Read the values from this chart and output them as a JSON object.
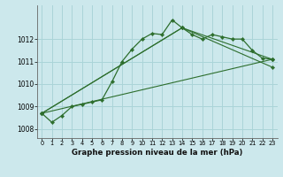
{
  "xlabel": "Graphe pression niveau de la mer (hPa)",
  "bg_color": "#cce8ec",
  "grid_color": "#aad4d8",
  "line_color": "#2d6e2d",
  "xmin": -0.5,
  "xmax": 23.5,
  "ymin": 1007.6,
  "ymax": 1013.5,
  "yticks": [
    1008,
    1009,
    1010,
    1011,
    1012
  ],
  "xticks": [
    0,
    1,
    2,
    3,
    4,
    5,
    6,
    7,
    8,
    9,
    10,
    11,
    12,
    13,
    14,
    15,
    16,
    17,
    18,
    19,
    20,
    21,
    22,
    23
  ],
  "series": [
    {
      "x": [
        0,
        1,
        2,
        3,
        4,
        5,
        6,
        7,
        8,
        9,
        10,
        11,
        12,
        13,
        14,
        15,
        16,
        17,
        18,
        19,
        20,
        21,
        22,
        23
      ],
      "y": [
        1008.7,
        1008.3,
        1008.6,
        1009.0,
        1009.1,
        1009.2,
        1009.3,
        1010.1,
        1011.0,
        1011.55,
        1012.0,
        1012.25,
        1012.2,
        1012.85,
        1012.5,
        1012.2,
        1012.0,
        1012.2,
        1012.1,
        1012.0,
        1012.0,
        1011.5,
        1011.15,
        1011.1
      ]
    },
    {
      "x": [
        0,
        23
      ],
      "y": [
        1008.7,
        1011.1
      ]
    },
    {
      "x": [
        0,
        14,
        23
      ],
      "y": [
        1008.7,
        1012.5,
        1011.1
      ]
    },
    {
      "x": [
        0,
        14,
        23
      ],
      "y": [
        1008.7,
        1012.5,
        1010.75
      ]
    }
  ]
}
